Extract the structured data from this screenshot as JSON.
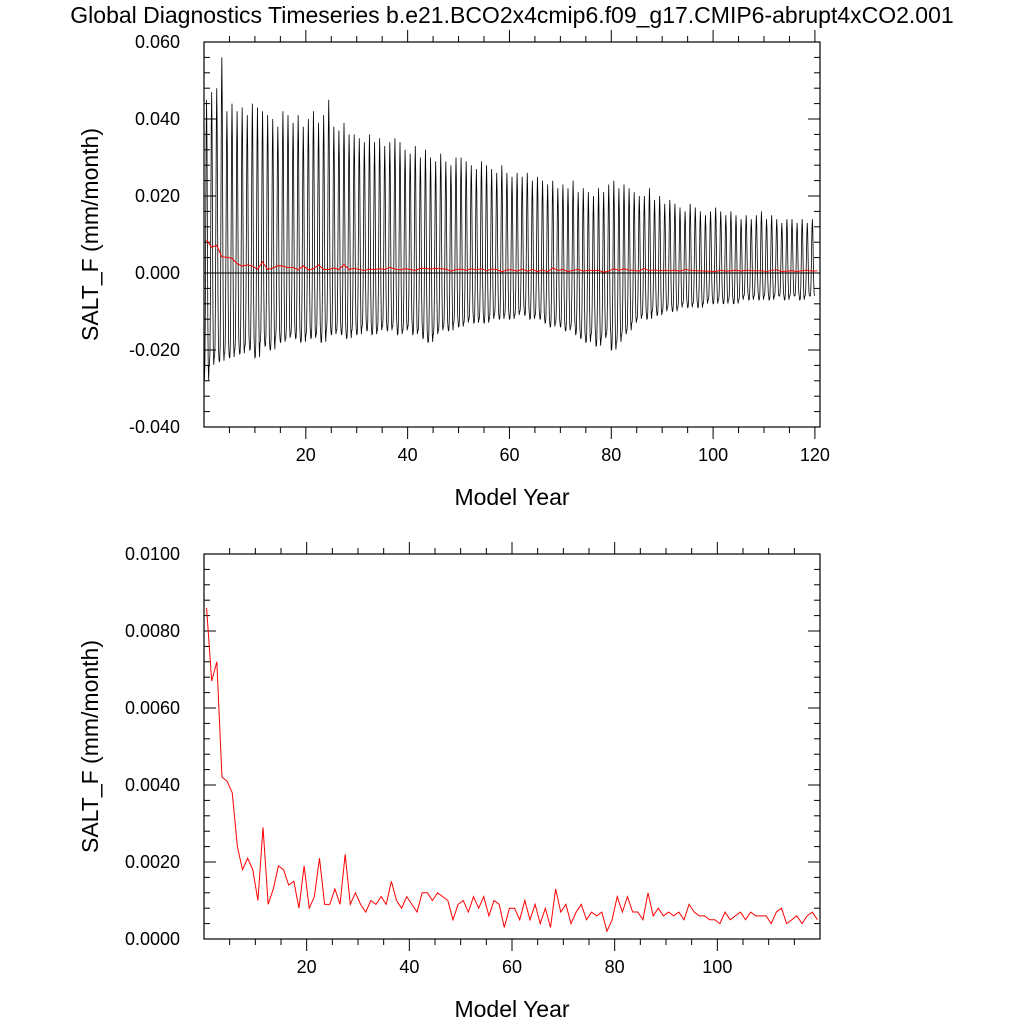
{
  "title": "Global Diagnostics Timeseries b.e21.BCO2x4cmip6.f09_g17.CMIP6-abrupt4xCO2.001",
  "chart_data": [
    {
      "type": "line",
      "xlabel": "Model Year",
      "ylabel": "SALT_F (mm/month)",
      "xlim": [
        0,
        121
      ],
      "ylim": [
        -0.04,
        0.06
      ],
      "xticks": [
        20,
        40,
        60,
        80,
        100,
        120
      ],
      "xtick_labels": [
        "20",
        "40",
        "60",
        "80",
        "100",
        "120"
      ],
      "yticks": [
        -0.04,
        -0.02,
        0.0,
        0.02,
        0.04,
        0.06
      ],
      "ytick_labels": [
        "-0.040",
        "-0.020",
        "0.000",
        "0.020",
        "0.040",
        "0.060"
      ],
      "reference_line": 0.0,
      "series": [
        {
          "role": "monthly",
          "color": "#000000",
          "annual_max": [
            0.045,
            0.047,
            0.048,
            0.056,
            0.042,
            0.044,
            0.042,
            0.043,
            0.041,
            0.044,
            0.043,
            0.042,
            0.041,
            0.04,
            0.038,
            0.042,
            0.041,
            0.039,
            0.041,
            0.038,
            0.04,
            0.042,
            0.039,
            0.041,
            0.045,
            0.038,
            0.037,
            0.039,
            0.036,
            0.036,
            0.035,
            0.034,
            0.036,
            0.034,
            0.035,
            0.033,
            0.034,
            0.035,
            0.034,
            0.032,
            0.031,
            0.033,
            0.03,
            0.032,
            0.03,
            0.029,
            0.031,
            0.029,
            0.028,
            0.03,
            0.03,
            0.029,
            0.028,
            0.027,
            0.029,
            0.028,
            0.027,
            0.026,
            0.028,
            0.026,
            0.025,
            0.026,
            0.025,
            0.026,
            0.024,
            0.025,
            0.024,
            0.023,
            0.024,
            0.022,
            0.023,
            0.022,
            0.024,
            0.021,
            0.022,
            0.021,
            0.02,
            0.022,
            0.021,
            0.023,
            0.024,
            0.022,
            0.023,
            0.022,
            0.021,
            0.02,
            0.02,
            0.022,
            0.019,
            0.02,
            0.018,
            0.019,
            0.018,
            0.017,
            0.016,
            0.018,
            0.017,
            0.016,
            0.015,
            0.016,
            0.017,
            0.016,
            0.015,
            0.016,
            0.015,
            0.014,
            0.015,
            0.014,
            0.015,
            0.016,
            0.014,
            0.015,
            0.014,
            0.013,
            0.014,
            0.014,
            0.013,
            0.014,
            0.013,
            0.014
          ],
          "annual_min": [
            -0.028,
            -0.024,
            -0.022,
            -0.023,
            -0.021,
            -0.022,
            -0.02,
            -0.021,
            -0.019,
            -0.02,
            -0.022,
            -0.018,
            -0.019,
            -0.02,
            -0.017,
            -0.018,
            -0.017,
            -0.016,
            -0.017,
            -0.018,
            -0.016,
            -0.017,
            -0.016,
            -0.018,
            -0.015,
            -0.016,
            -0.015,
            -0.016,
            -0.017,
            -0.015,
            -0.016,
            -0.014,
            -0.015,
            -0.016,
            -0.015,
            -0.014,
            -0.015,
            -0.014,
            -0.016,
            -0.015,
            -0.014,
            -0.016,
            -0.015,
            -0.017,
            -0.018,
            -0.016,
            -0.015,
            -0.014,
            -0.015,
            -0.013,
            -0.014,
            -0.013,
            -0.012,
            -0.013,
            -0.012,
            -0.013,
            -0.012,
            -0.011,
            -0.012,
            -0.011,
            -0.012,
            -0.011,
            -0.01,
            -0.011,
            -0.012,
            -0.011,
            -0.012,
            -0.013,
            -0.014,
            -0.013,
            -0.014,
            -0.015,
            -0.014,
            -0.016,
            -0.017,
            -0.018,
            -0.016,
            -0.019,
            -0.017,
            -0.016,
            -0.02,
            -0.018,
            -0.016,
            -0.015,
            -0.013,
            -0.012,
            -0.011,
            -0.012,
            -0.01,
            -0.011,
            -0.01,
            -0.009,
            -0.01,
            -0.009,
            -0.008,
            -0.009,
            -0.008,
            -0.009,
            -0.008,
            -0.007,
            -0.008,
            -0.007,
            -0.008,
            -0.007,
            -0.008,
            -0.007,
            -0.006,
            -0.007,
            -0.006,
            -0.007,
            -0.006,
            -0.007,
            -0.006,
            -0.006,
            -0.007,
            -0.006,
            -0.006,
            -0.007,
            -0.006,
            -0.006
          ]
        },
        {
          "role": "annual_mean",
          "color": "#ff0000",
          "values": [
            0.0086,
            0.0067,
            0.0072,
            0.0042,
            0.0041,
            0.0038,
            0.0024,
            0.0018,
            0.0021,
            0.0018,
            0.001,
            0.0029,
            0.0009,
            0.0013,
            0.0019,
            0.0018,
            0.0014,
            0.0015,
            0.0008,
            0.0019,
            0.0008,
            0.0011,
            0.0021,
            0.0009,
            0.0009,
            0.0013,
            0.0009,
            0.0022,
            0.0009,
            0.0012,
            0.0009,
            0.0007,
            0.001,
            0.0009,
            0.0011,
            0.0009,
            0.0015,
            0.001,
            0.0008,
            0.0011,
            0.0009,
            0.0007,
            0.0012,
            0.0012,
            0.001,
            0.0012,
            0.0011,
            0.001,
            0.0005,
            0.0009,
            0.001,
            0.0007,
            0.0011,
            0.0008,
            0.0011,
            0.0006,
            0.001,
            0.0009,
            0.0003,
            0.0008,
            0.0008,
            0.0005,
            0.001,
            0.0005,
            0.0009,
            0.0004,
            0.0008,
            0.0003,
            0.0013,
            0.0007,
            0.0009,
            0.0004,
            0.0007,
            0.0009,
            0.0005,
            0.0007,
            0.0006,
            0.0007,
            0.0002,
            0.0005,
            0.0011,
            0.0007,
            0.0011,
            0.0007,
            0.0007,
            0.0005,
            0.0012,
            0.0006,
            0.0008,
            0.0006,
            0.0007,
            0.0006,
            0.0007,
            0.0005,
            0.0009,
            0.0007,
            0.0006,
            0.0006,
            0.0005,
            0.0005,
            0.0004,
            0.0007,
            0.0005,
            0.0006,
            0.0007,
            0.0005,
            0.0007,
            0.0006,
            0.0006,
            0.0006,
            0.0004,
            0.0007,
            0.0008,
            0.0004,
            0.0005,
            0.0006,
            0.0004,
            0.0006,
            0.0007,
            0.0005,
            0.0006
          ]
        }
      ]
    },
    {
      "type": "line",
      "xlabel": "Model Year",
      "ylabel": "SALT_F (mm/month)",
      "xlim": [
        0,
        120
      ],
      "ylim": [
        0.0,
        0.01
      ],
      "xticks": [
        20,
        40,
        60,
        80,
        100
      ],
      "xtick_labels": [
        "20",
        "40",
        "60",
        "80",
        "100"
      ],
      "yticks": [
        0.0,
        0.002,
        0.004,
        0.006,
        0.008,
        0.01
      ],
      "ytick_labels": [
        "0.0000",
        "0.0020",
        "0.0040",
        "0.0060",
        "0.0080",
        "0.0100"
      ],
      "series": [
        {
          "role": "annual_mean",
          "color": "#ff0000",
          "values": [
            0.0086,
            0.0067,
            0.0072,
            0.0042,
            0.0041,
            0.0038,
            0.0024,
            0.0018,
            0.0021,
            0.0018,
            0.001,
            0.0029,
            0.0009,
            0.0013,
            0.0019,
            0.0018,
            0.0014,
            0.0015,
            0.0008,
            0.0019,
            0.0008,
            0.0011,
            0.0021,
            0.0009,
            0.0009,
            0.0013,
            0.0009,
            0.0022,
            0.0009,
            0.0012,
            0.0009,
            0.0007,
            0.001,
            0.0009,
            0.0011,
            0.0009,
            0.0015,
            0.001,
            0.0008,
            0.0011,
            0.0009,
            0.0007,
            0.0012,
            0.0012,
            0.001,
            0.0012,
            0.0011,
            0.001,
            0.0005,
            0.0009,
            0.001,
            0.0007,
            0.0011,
            0.0008,
            0.0011,
            0.0006,
            0.001,
            0.0009,
            0.0003,
            0.0008,
            0.0008,
            0.0005,
            0.001,
            0.0005,
            0.0009,
            0.0004,
            0.0008,
            0.0003,
            0.0013,
            0.0007,
            0.0009,
            0.0004,
            0.0007,
            0.0009,
            0.0005,
            0.0007,
            0.0006,
            0.0007,
            0.0002,
            0.0005,
            0.0011,
            0.0007,
            0.0011,
            0.0007,
            0.0007,
            0.0005,
            0.0012,
            0.0006,
            0.0008,
            0.0006,
            0.0007,
            0.0006,
            0.0007,
            0.0005,
            0.0009,
            0.0007,
            0.0006,
            0.0006,
            0.0005,
            0.0005,
            0.0004,
            0.0007,
            0.0005,
            0.0006,
            0.0007,
            0.0005,
            0.0007,
            0.0006,
            0.0006,
            0.0006,
            0.0004,
            0.0007,
            0.0008,
            0.0004,
            0.0005,
            0.0006,
            0.0004,
            0.0006,
            0.0007,
            0.0005
          ]
        }
      ]
    }
  ]
}
